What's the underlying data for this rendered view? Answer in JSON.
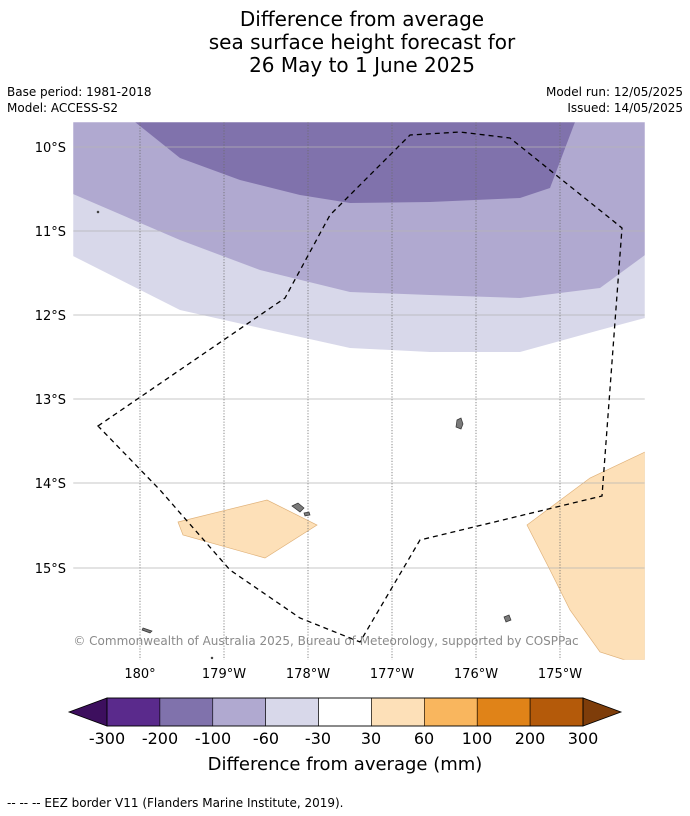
{
  "title": {
    "line1": "Difference from average",
    "line2": "sea surface height forecast for",
    "line3": "26 May to 1 June 2025"
  },
  "meta": {
    "base_period": "Base period: 1981-2018",
    "model": "Model: ACCESS-S2",
    "model_run": "Model run: 12/05/2025",
    "issued": "Issued: 14/05/2025"
  },
  "map": {
    "lat_labels": [
      "10°S",
      "11°S",
      "12°S",
      "13°S",
      "14°S",
      "15°S"
    ],
    "lon_labels": [
      "180°",
      "179°W",
      "178°W",
      "177°W",
      "176°W",
      "175°W"
    ],
    "copyright": "© Commonwealth of Australia 2025, Bureau of Meteorology, supported by COSPPac"
  },
  "colorbar": {
    "tick_labels": [
      "-300",
      "-200",
      "-100",
      "-60",
      "-30",
      "30",
      "60",
      "100",
      "200",
      "300"
    ],
    "colors": [
      "#5a2a8c",
      "#8072ac",
      "#b0a9d0",
      "#d8d8ea",
      "#ffffff",
      "#fde0b8",
      "#f9b65e",
      "#e08318",
      "#b45a0a"
    ],
    "under_color": "#3d0f5e",
    "over_color": "#7e3d0a",
    "label": "Difference from average (mm)"
  },
  "footer": {
    "eez_legend": "--  --  -- EEZ border V11 (Flanders Marine Institute, 2019)."
  }
}
